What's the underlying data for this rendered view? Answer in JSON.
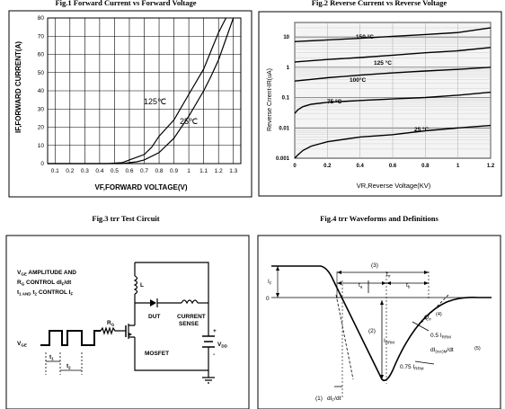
{
  "chart_data": [
    {
      "type": "line",
      "title": "Fig.1  Forward Current vs Forward Voltage",
      "xlabel": "VF,FORWARD VOLTAGE(V)",
      "ylabel": "IF,FORWARD CURRENT(A)",
      "xlim": [
        0.05,
        1.35
      ],
      "ylim": [
        0,
        80
      ],
      "x_ticks": [
        "0.1",
        "0.2",
        "0.3",
        "0.4",
        "0.5",
        "0.6",
        "0.7",
        "0.8",
        "0.9",
        "1",
        "1.1",
        "1.2",
        "1.3"
      ],
      "y_ticks": [
        "0",
        "10",
        "20",
        "30",
        "40",
        "50",
        "60",
        "70",
        "80"
      ],
      "grid": true,
      "series": [
        {
          "name": "125℃",
          "x": [
            0.05,
            0.45,
            0.55,
            0.6,
            0.7,
            0.75,
            0.8,
            0.9,
            1.0,
            1.1,
            1.15,
            1.2,
            1.25
          ],
          "y": [
            0,
            0,
            0.5,
            2,
            5,
            9,
            15,
            24,
            38,
            52,
            62,
            72,
            80
          ]
        },
        {
          "name": "25℃",
          "x": [
            0.05,
            0.55,
            0.65,
            0.7,
            0.8,
            0.9,
            1.0,
            1.1,
            1.15,
            1.2,
            1.3
          ],
          "y": [
            0,
            0,
            1,
            2,
            6,
            14,
            26,
            40,
            48,
            57,
            80
          ]
        }
      ]
    },
    {
      "type": "line",
      "title": "Fig.2  Reverse Current vs Reverse Voltage",
      "xlabel": "VR,Reverse Voltage(KV)",
      "ylabel": "Reverse Crrent-IR(uA)",
      "xlim": [
        0,
        1.2
      ],
      "ylim": [
        0.001,
        30
      ],
      "yscale": "log",
      "x_ticks": [
        "0",
        "0.2",
        "0.4",
        "0.6",
        "0.8",
        "1",
        "1.2"
      ],
      "y_ticks": [
        "0.001",
        "0.01",
        "0.1",
        "1",
        "10"
      ],
      "grid": true,
      "series": [
        {
          "name": "150 °C",
          "x": [
            0,
            0.2,
            0.4,
            0.6,
            0.8,
            1.0,
            1.2
          ],
          "y": [
            7,
            8,
            9,
            10.5,
            12,
            14,
            20
          ]
        },
        {
          "name": "125 °C",
          "x": [
            0,
            0.2,
            0.4,
            0.6,
            0.8,
            1.0,
            1.2
          ],
          "y": [
            1.5,
            1.8,
            2.1,
            2.5,
            3,
            3.5,
            4.5
          ]
        },
        {
          "name": "100°C",
          "x": [
            0,
            0.2,
            0.4,
            0.6,
            0.8,
            1.0,
            1.2
          ],
          "y": [
            0.35,
            0.45,
            0.55,
            0.65,
            0.75,
            0.85,
            1.0
          ]
        },
        {
          "name": "75 °C",
          "x": [
            0,
            0.02,
            0.05,
            0.1,
            0.2,
            0.4,
            0.6,
            0.8,
            1.0,
            1.2
          ],
          "y": [
            0.03,
            0.04,
            0.05,
            0.06,
            0.07,
            0.08,
            0.09,
            0.1,
            0.12,
            0.15
          ]
        },
        {
          "name": "25 °C",
          "x": [
            0,
            0.02,
            0.05,
            0.1,
            0.2,
            0.4,
            0.6,
            0.8,
            1.0,
            1.2
          ],
          "y": [
            0.001,
            0.0013,
            0.0018,
            0.0025,
            0.0035,
            0.005,
            0.006,
            0.008,
            0.01,
            0.012
          ]
        }
      ]
    }
  ],
  "fig3": {
    "title": "Fig.3  trr Test Circuit",
    "desc_line1": "V",
    "desc_line1_sub": "GE",
    "desc_line1_rest": " AMPLITUDE AND",
    "desc_line2": "R",
    "desc_line2_sub": "G",
    "desc_line2_rest": " CONTROL dI",
    "desc_line2_sub2": "F",
    "desc_line2_rest2": "/dt",
    "desc_line3": "t",
    "desc_line3_sub": "1 AND",
    "desc_line3_rest": " t",
    "desc_line3_sub2": "2",
    "desc_line3_rest2": " CONTROL I",
    "desc_line3_sub3": "F",
    "l_label": "L",
    "dut_label": "DUT",
    "current_label": "CURRENT",
    "sense_label": "SENSE",
    "rg_label": "R",
    "rg_sub": "G",
    "vge_label": "V",
    "vge_sub": "GE",
    "t1_label": "t",
    "t1_sub": "1",
    "t2_label": "t",
    "t2_sub": "2",
    "mosfet_label": "MOSFET",
    "plus_label": "+",
    "minus_label": "-",
    "vdd_label": "V",
    "vdd_sub": "DD"
  },
  "fig4": {
    "title": "Fig.4  trr Waveforms and Definitions",
    "if_label": "I",
    "if_sub": "F",
    "zero_label": "0",
    "label3": "(3)",
    "trr_label": "t",
    "trr_sub": "rr",
    "ta_label": "t",
    "ta_sub": "a",
    "tb_label": "t",
    "tb_sub": "b",
    "qrr_label": "Q",
    "qrr_sub": "rr",
    "label4": "(4)",
    "label2": "(2)",
    "irrm_label": "I",
    "irrm_sub": "RRM",
    "half_irrm": "0.5 I",
    "half_irrm_sub": "RRM",
    "di_label": "dI",
    "di_sub": "(rec)M",
    "di_rest": "/dt",
    "label5": "(5)",
    "q75_label": "0.75 I",
    "q75_sub": "RRM",
    "label1": "(1)",
    "dif_label": "dI",
    "dif_sub": "F",
    "dif_rest": "/dt"
  }
}
